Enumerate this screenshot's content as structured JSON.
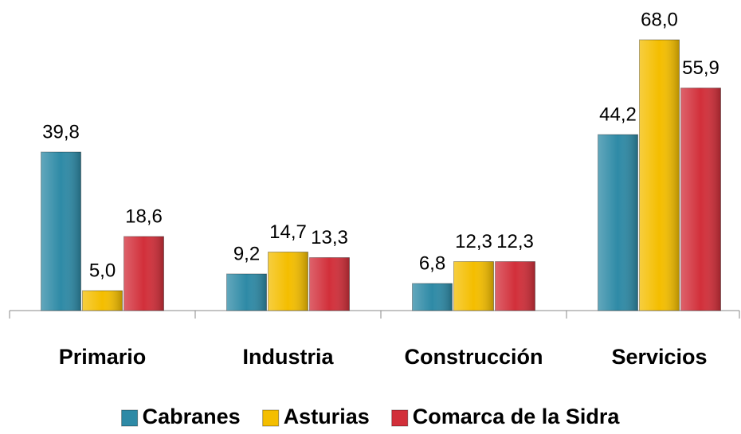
{
  "chart_data": {
    "type": "bar",
    "categories": [
      "Primario",
      "Industria",
      "Construcción",
      "Servicios"
    ],
    "series": [
      {
        "name": "Cabranes",
        "color": "#2e8aa6",
        "values": [
          39.8,
          9.2,
          6.8,
          44.2
        ],
        "value_labels": [
          "39,8",
          "9,2",
          "6,8",
          "44,2"
        ]
      },
      {
        "name": "Asturias",
        "color": "#f4be00",
        "values": [
          5.0,
          14.7,
          12.3,
          68.0
        ],
        "value_labels": [
          "5,0",
          "14,7",
          "12,3",
          "68,0"
        ]
      },
      {
        "name": "Comarca de la Sidra",
        "color": "#d22f3a",
        "values": [
          18.6,
          13.3,
          12.3,
          55.9
        ],
        "value_labels": [
          "18,6",
          "13,3",
          "12,3",
          "55,9"
        ]
      }
    ],
    "ylim": [
      0,
      68
    ],
    "legend": "bottom"
  }
}
